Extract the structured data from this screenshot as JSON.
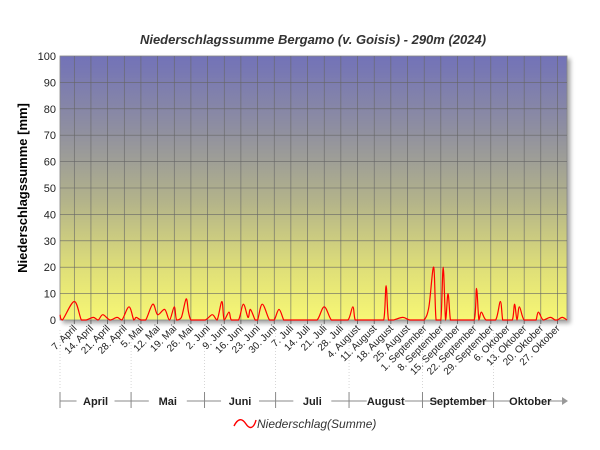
{
  "chart_data": {
    "type": "line",
    "title": "Niederschlagssumme Bergamo (v. Goisis) - 290m (2024)",
    "xlabel": "",
    "ylabel": "Niederschlagssumme [mm]",
    "ylim": [
      0,
      100
    ],
    "yticks": [
      0,
      10,
      20,
      30,
      40,
      50,
      60,
      70,
      80,
      90,
      100
    ],
    "grid": true,
    "legend_position": "bottom-center",
    "x_start": "2024-04-01",
    "x_end": "2024-10-31",
    "xtick_labels": [
      "7. April",
      "14. April",
      "21. April",
      "28. April",
      "5. Mai",
      "12. Mai",
      "19. Mai",
      "26. Mai",
      "2. Juni",
      "9. Juni",
      "16. Juni",
      "23. Juni",
      "30. Juni",
      "7. Juli",
      "14. Juli",
      "21. Juli",
      "28. Juli",
      "4. August",
      "11. August",
      "18. August",
      "25. August",
      "1. September",
      "8. September",
      "15. September",
      "22. September",
      "29. September",
      "6. Oktober",
      "13. Oktober",
      "20. Oktober",
      "27. Oktober"
    ],
    "month_labels": [
      "April",
      "Mai",
      "Juni",
      "Juli",
      "August",
      "September",
      "Oktober"
    ],
    "series": [
      {
        "name": "Niederschlag(Summe)",
        "color": "#ff0000",
        "x": [
          "2024-04-01",
          "2024-04-02",
          "2024-04-07",
          "2024-04-10",
          "2024-04-12",
          "2024-04-15",
          "2024-04-17",
          "2024-04-19",
          "2024-04-22",
          "2024-04-25",
          "2024-04-27",
          "2024-04-30",
          "2024-05-02",
          "2024-05-03",
          "2024-05-05",
          "2024-05-07",
          "2024-05-10",
          "2024-05-12",
          "2024-05-15",
          "2024-05-17",
          "2024-05-19",
          "2024-05-20",
          "2024-05-22",
          "2024-05-24",
          "2024-05-25",
          "2024-05-26",
          "2024-05-28",
          "2024-06-01",
          "2024-06-04",
          "2024-06-06",
          "2024-06-08",
          "2024-06-09",
          "2024-06-11",
          "2024-06-12",
          "2024-06-15",
          "2024-06-17",
          "2024-06-19",
          "2024-06-20",
          "2024-06-22",
          "2024-06-23",
          "2024-06-25",
          "2024-06-28",
          "2024-06-30",
          "2024-07-02",
          "2024-07-04",
          "2024-07-05",
          "2024-07-08",
          "2024-07-11",
          "2024-07-14",
          "2024-07-18",
          "2024-07-21",
          "2024-07-24",
          "2024-07-27",
          "2024-07-31",
          "2024-08-02",
          "2024-08-03",
          "2024-08-05",
          "2024-08-08",
          "2024-08-12",
          "2024-08-15",
          "2024-08-16",
          "2024-08-17",
          "2024-08-19",
          "2024-08-23",
          "2024-08-26",
          "2024-08-30",
          "2024-09-01",
          "2024-09-03",
          "2024-09-05",
          "2024-09-06",
          "2024-09-08",
          "2024-09-09",
          "2024-09-10",
          "2024-09-11",
          "2024-09-12",
          "2024-09-13",
          "2024-09-15",
          "2024-09-18",
          "2024-09-22",
          "2024-09-23",
          "2024-09-24",
          "2024-09-25",
          "2024-09-27",
          "2024-10-01",
          "2024-10-03",
          "2024-10-04",
          "2024-10-05",
          "2024-10-08",
          "2024-10-09",
          "2024-10-10",
          "2024-10-11",
          "2024-10-13",
          "2024-10-17",
          "2024-10-18",
          "2024-10-19",
          "2024-10-21",
          "2024-10-24",
          "2024-10-26",
          "2024-10-27",
          "2024-10-29",
          "2024-10-31"
        ],
        "values": [
          2,
          0,
          7,
          0,
          0,
          1,
          0,
          2,
          0,
          1,
          0,
          5,
          0,
          1,
          0,
          0,
          6,
          2,
          4,
          0,
          5,
          0,
          1,
          8,
          3,
          0,
          0,
          0,
          2,
          0,
          7,
          0,
          3,
          0,
          0,
          6,
          1,
          4,
          0,
          0,
          6,
          0,
          0,
          4,
          0,
          0,
          0,
          0,
          0,
          0,
          5,
          0,
          0,
          0,
          5,
          0,
          0,
          0,
          0,
          0,
          13,
          0,
          0,
          1,
          0,
          0,
          0,
          5,
          20,
          0,
          0,
          20,
          0,
          10,
          0,
          0,
          0,
          0,
          0,
          12,
          0,
          3,
          0,
          0,
          7,
          0,
          0,
          0,
          6,
          0,
          5,
          0,
          0,
          0,
          3,
          0,
          1,
          0,
          0,
          1,
          0
        ]
      }
    ]
  }
}
